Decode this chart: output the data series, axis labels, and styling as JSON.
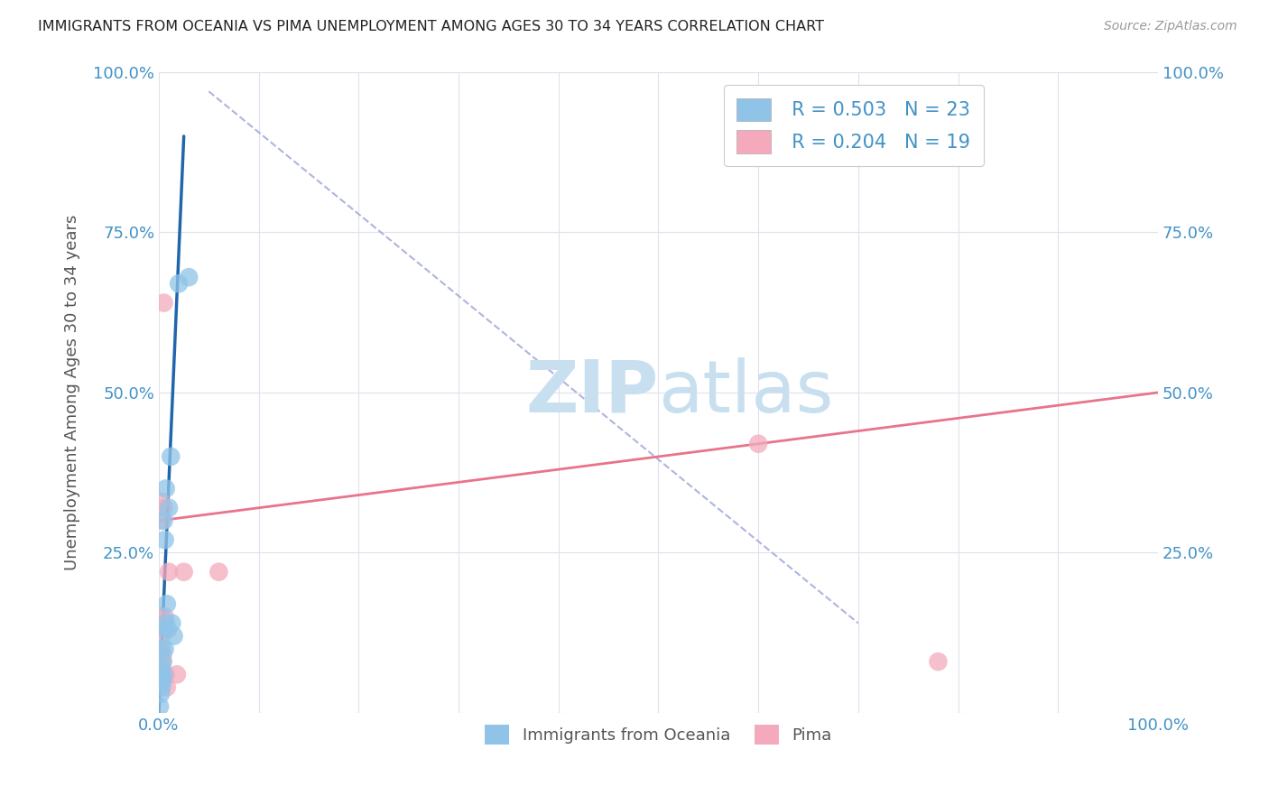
{
  "title": "IMMIGRANTS FROM OCEANIA VS PIMA UNEMPLOYMENT AMONG AGES 30 TO 34 YEARS CORRELATION CHART",
  "source": "Source: ZipAtlas.com",
  "ylabel": "Unemployment Among Ages 30 to 34 years",
  "legend_label1": "Immigrants from Oceania",
  "legend_label2": "Pima",
  "legend_R1": "R = 0.503",
  "legend_N1": "N = 23",
  "legend_R2": "R = 0.204",
  "legend_N2": "N = 19",
  "color_blue": "#8fc4e8",
  "color_pink": "#f4aabc",
  "color_line_blue": "#2166ac",
  "color_line_pink": "#e8748a",
  "color_dashed": "#a0a8d8",
  "color_title": "#222222",
  "color_axis_blue": "#4292c6",
  "watermark_zip_color": "#c8dff0",
  "watermark_atlas_color": "#c8dff0",
  "background_color": "#ffffff",
  "grid_color": "#e0e0ee",
  "blue_x": [
    0.001,
    0.002,
    0.002,
    0.003,
    0.003,
    0.003,
    0.004,
    0.004,
    0.005,
    0.005,
    0.005,
    0.006,
    0.006,
    0.007,
    0.007,
    0.008,
    0.009,
    0.01,
    0.012,
    0.013,
    0.015,
    0.02,
    0.03
  ],
  "blue_y": [
    0.01,
    0.03,
    0.06,
    0.04,
    0.07,
    0.1,
    0.05,
    0.08,
    0.06,
    0.13,
    0.3,
    0.1,
    0.27,
    0.35,
    0.14,
    0.17,
    0.13,
    0.32,
    0.4,
    0.14,
    0.12,
    0.67,
    0.68
  ],
  "pink_x": [
    0.001,
    0.001,
    0.002,
    0.002,
    0.003,
    0.003,
    0.004,
    0.004,
    0.005,
    0.005,
    0.006,
    0.007,
    0.008,
    0.01,
    0.018,
    0.025,
    0.06,
    0.6,
    0.78
  ],
  "pink_y": [
    0.05,
    0.1,
    0.33,
    0.15,
    0.3,
    0.12,
    0.09,
    0.08,
    0.64,
    0.32,
    0.15,
    0.06,
    0.04,
    0.22,
    0.06,
    0.22,
    0.22,
    0.42,
    0.08
  ],
  "blue_line_x": [
    0.0,
    0.025
  ],
  "blue_line_y": [
    0.0,
    0.9
  ],
  "pink_line_x": [
    0.0,
    1.0
  ],
  "pink_line_y": [
    0.3,
    0.5
  ],
  "dashed_line_x": [
    0.05,
    0.7
  ],
  "dashed_line_y": [
    0.97,
    0.14
  ],
  "xlim": [
    0.0,
    1.0
  ],
  "ylim": [
    0.0,
    1.0
  ],
  "x_ticks": [
    0.0,
    0.1,
    0.2,
    0.3,
    0.4,
    0.5,
    0.6,
    0.7,
    0.8,
    0.9,
    1.0
  ],
  "y_ticks": [
    0.0,
    0.25,
    0.5,
    0.75,
    1.0
  ]
}
